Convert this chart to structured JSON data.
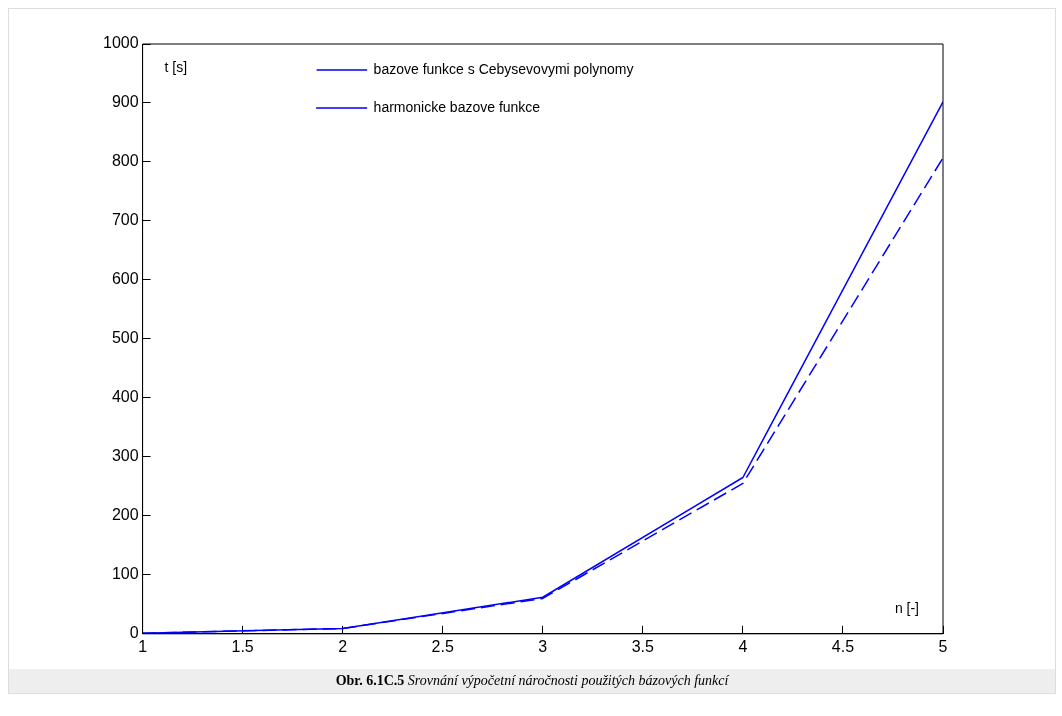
{
  "chart_data": {
    "type": "line",
    "xlabel": "n [-]",
    "ylabel": "t [s]",
    "x": [
      1,
      2,
      3,
      4,
      5
    ],
    "series": [
      {
        "name": "bazove funkce s Cebysevovymi polynomy",
        "color": "#0000ff",
        "values": [
          1,
          9,
          60,
          255,
          807
        ],
        "line_style": "dashed"
      },
      {
        "name": "harmonicke bazove funkce",
        "color": "#0000ff",
        "values": [
          1,
          9,
          62,
          265,
          902
        ],
        "line_style": "solid"
      }
    ],
    "xlim": [
      1,
      5
    ],
    "xticks": [
      1,
      1.5,
      2,
      2.5,
      3,
      3.5,
      4,
      4.5,
      5
    ],
    "ylim": [
      0,
      1000
    ],
    "yticks": [
      0,
      100,
      200,
      300,
      400,
      500,
      600,
      700,
      800,
      900,
      1000
    ],
    "grid": false,
    "legend": "top",
    "marker": "none",
    "annotations": [
      "Obr. 6.1C.5 Srovnání výpočetní náročnosti použitých bázových funkcí"
    ]
  }
}
